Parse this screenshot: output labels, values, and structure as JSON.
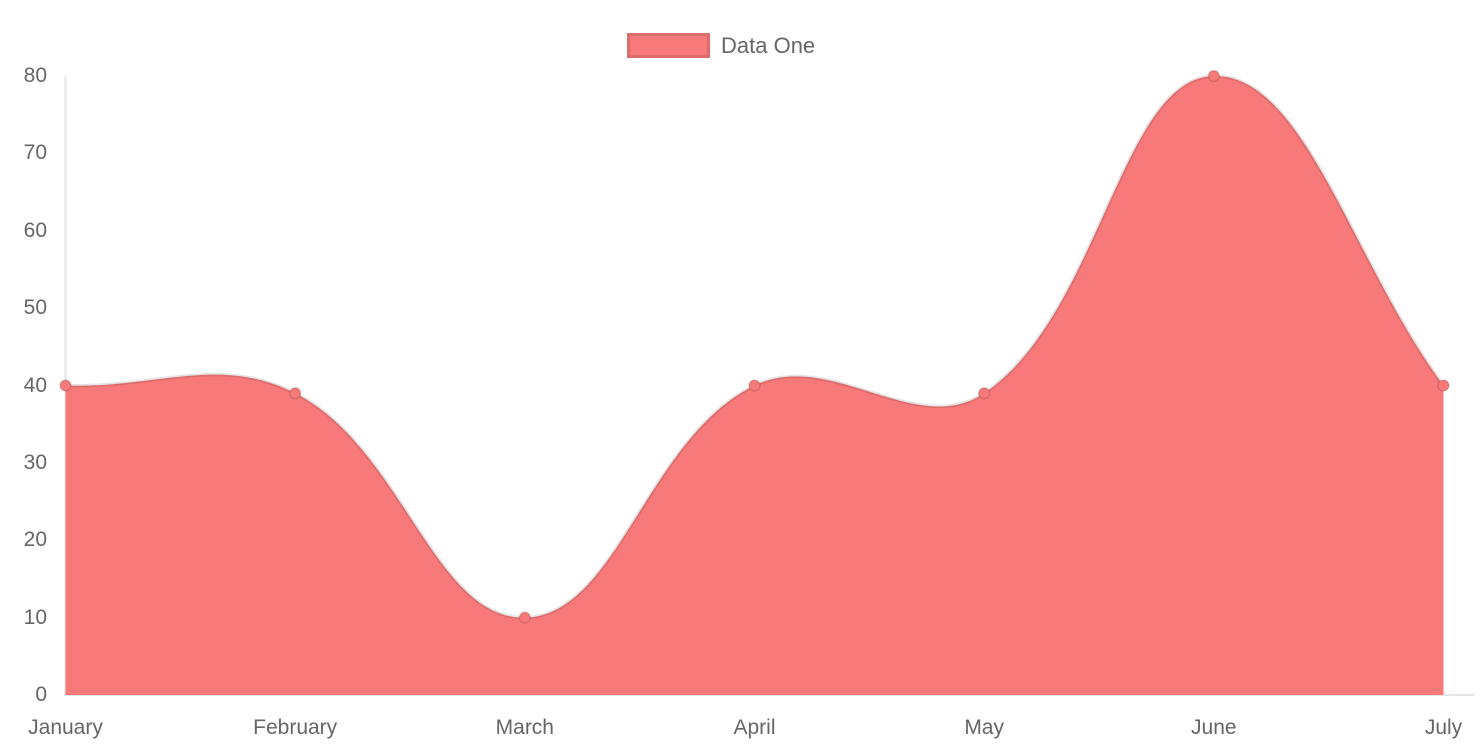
{
  "page": {
    "background": "#ffffff"
  },
  "legend": {
    "position": "top",
    "items": [
      {
        "label": "Data One",
        "box_color": "#f87979",
        "box_border_color": "rgba(0,0,0,0.1)"
      }
    ]
  },
  "chart_data": {
    "type": "area",
    "title": "",
    "categories": [
      "January",
      "February",
      "March",
      "April",
      "May",
      "June",
      "July"
    ],
    "series": [
      {
        "name": "Data One",
        "values": [
          40,
          39,
          10,
          40,
          39,
          80,
          40
        ],
        "fill_color": "#f87979",
        "line_color": "rgba(0,0,0,0.1)",
        "point_color": "#f87979",
        "point_border_color": "rgba(0,0,0,0.12)",
        "line_tension": 0.4
      }
    ],
    "xlabel": "",
    "ylabel": "",
    "ylim": [
      0,
      80
    ],
    "y_ticks": [
      0,
      10,
      20,
      30,
      40,
      50,
      60,
      70,
      80
    ],
    "grid": false,
    "legend_position": "top",
    "axis_color": "rgba(0,0,0,0.1)",
    "tick_label_color": "#666666"
  }
}
